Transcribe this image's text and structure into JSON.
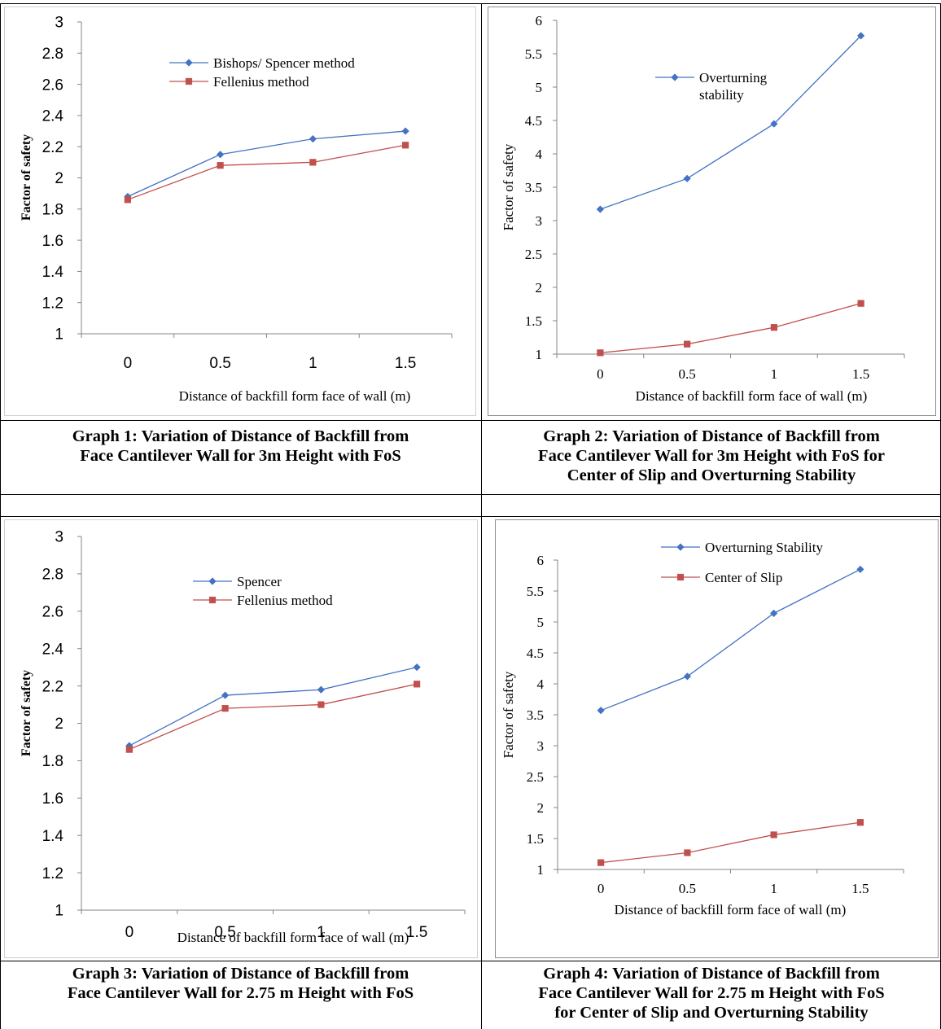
{
  "charts": {
    "chart_data": [
      {
        "type": "line",
        "title": "",
        "xlabel": "Distance of backfill form face of wall (m)",
        "ylabel": "Factor of safety",
        "categories": [
          "0",
          "0.5",
          "1",
          "1.5"
        ],
        "y_ticks": [
          "1",
          "1.2",
          "1.4",
          "1.6",
          "1.8",
          "2",
          "2.2",
          "2.4",
          "2.6",
          "2.8",
          "3"
        ],
        "ylim": [
          1,
          3
        ],
        "grid": false,
        "legend_position": "top-center",
        "series": [
          {
            "name": "Bishops/ Spencer method",
            "values": [
              1.88,
              2.15,
              2.25,
              2.3
            ],
            "color": "#4472c4",
            "marker": "diamond"
          },
          {
            "name": "Fellenius method",
            "values": [
              1.86,
              2.08,
              2.1,
              2.21
            ],
            "color": "#c0504d",
            "marker": "square"
          }
        ]
      },
      {
        "type": "line",
        "title": "",
        "xlabel": "Distance of backfill form face of wall (m)",
        "ylabel": "Factor of safety",
        "categories": [
          "0",
          "0.5",
          "1",
          "1.5"
        ],
        "y_ticks": [
          "1",
          "1.5",
          "2",
          "2.5",
          "3",
          "3.5",
          "4",
          "4.5",
          "5",
          "5.5",
          "6"
        ],
        "ylim": [
          1,
          6
        ],
        "grid": false,
        "legend_position": "top-left",
        "series": [
          {
            "name": "Overturning stability",
            "values": [
              3.17,
              3.63,
              4.45,
              5.77
            ],
            "color": "#4472c4",
            "marker": "diamond"
          },
          {
            "name": "",
            "values": [
              1.02,
              1.15,
              1.4,
              1.76
            ],
            "color": "#c0504d",
            "marker": "square"
          }
        ]
      },
      {
        "type": "line",
        "title": "",
        "xlabel": "Distance of backfill form face of wall (m)",
        "ylabel": "Factor of safety",
        "categories": [
          "0",
          "0.5",
          "1",
          "1.5"
        ],
        "y_ticks": [
          "1",
          "1.2",
          "1.4",
          "1.6",
          "1.8",
          "2",
          "2.2",
          "2.4",
          "2.6",
          "2.8",
          "3"
        ],
        "ylim": [
          1,
          3
        ],
        "grid": false,
        "legend_position": "top-center",
        "series": [
          {
            "name": "Spencer",
            "values": [
              1.88,
              2.15,
              2.18,
              2.3
            ],
            "color": "#4472c4",
            "marker": "diamond"
          },
          {
            "name": "Fellenius method",
            "values": [
              1.86,
              2.08,
              2.1,
              2.21
            ],
            "color": "#c0504d",
            "marker": "square"
          }
        ]
      },
      {
        "type": "line",
        "title": "",
        "xlabel": "Distance of backfill form face of wall (m)",
        "ylabel": "Factor of safety",
        "categories": [
          "0",
          "0.5",
          "1",
          "1.5"
        ],
        "y_ticks": [
          "1",
          "1.5",
          "2",
          "2.5",
          "3",
          "3.5",
          "4",
          "4.5",
          "5",
          "5.5",
          "6"
        ],
        "ylim": [
          1,
          6
        ],
        "grid": false,
        "legend_position": "top-center",
        "series": [
          {
            "name": "Overturning Stability",
            "values": [
              3.57,
              4.12,
              5.14,
              5.85
            ],
            "color": "#4472c4",
            "marker": "diamond"
          },
          {
            "name": "Center of Slip",
            "values": [
              1.11,
              1.27,
              1.56,
              1.76
            ],
            "color": "#c0504d",
            "marker": "square"
          }
        ]
      }
    ]
  },
  "captions": {
    "graph1": [
      "Graph 1: Variation of Distance of Backfill from",
      "Face Cantilever Wall for 3m Height with FoS"
    ],
    "graph2": [
      "Graph 2: Variation of Distance of Backfill from",
      "Face Cantilever Wall for 3m Height with FoS for",
      "Center of Slip and Overturning Stability"
    ],
    "graph3": [
      "Graph 3: Variation of Distance of Backfill from",
      "Face Cantilever Wall for 2.75 m Height with FoS"
    ],
    "graph4": [
      "Graph 4: Variation of Distance of Backfill from",
      "Face Cantilever Wall for 2.75 m Height with FoS",
      "for Center of Slip and Overturning Stability"
    ]
  }
}
